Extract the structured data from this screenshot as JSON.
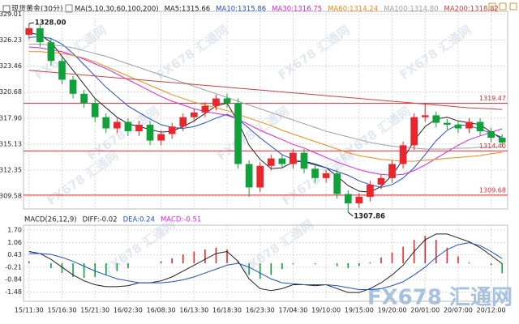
{
  "chart_data": [
    {
      "type": "candlestick",
      "title": "现货黄金(30分)",
      "indicator": "MA(5,10,30,60,100,200)",
      "open": [
        1326.8,
        1327.5,
        1326.0,
        1324.0,
        1322.0,
        1320.5,
        1319.5,
        1318.0,
        1316.8,
        1317.5,
        1316.5,
        1317.2,
        1315.5,
        1316.2,
        1317.0,
        1318.0,
        1318.5,
        1319.2,
        1320.0,
        1319.5,
        1313.0,
        1310.5,
        1312.8,
        1313.6,
        1313.0,
        1314.2,
        1312.5,
        1311.5,
        1312.0,
        1309.8,
        1308.8,
        1309.5,
        1310.8,
        1311.5,
        1313.0,
        1315.0,
        1318.0,
        1318.2,
        1317.4,
        1317.2,
        1316.8,
        1317.5,
        1316.5,
        1315.8
      ],
      "high": [
        1328.0,
        1327.9,
        1326.4,
        1324.4,
        1322.4,
        1320.9,
        1319.9,
        1318.4,
        1317.9,
        1317.9,
        1317.6,
        1317.6,
        1316.6,
        1317.4,
        1318.4,
        1318.9,
        1319.6,
        1320.4,
        1320.5,
        1320.0,
        1313.4,
        1313.2,
        1314.0,
        1314.0,
        1314.6,
        1314.6,
        1312.9,
        1312.4,
        1312.4,
        1310.2,
        1309.9,
        1311.2,
        1311.9,
        1313.4,
        1315.4,
        1318.4,
        1319.4,
        1318.6,
        1317.8,
        1317.6,
        1317.9,
        1317.9,
        1316.9,
        1316.2
      ],
      "low": [
        1326.3,
        1325.5,
        1323.5,
        1321.5,
        1320.0,
        1319.0,
        1317.5,
        1316.3,
        1316.3,
        1316.0,
        1316.0,
        1315.0,
        1315.0,
        1315.7,
        1316.5,
        1317.5,
        1318.0,
        1318.7,
        1319.0,
        1312.5,
        1309.5,
        1310.0,
        1312.3,
        1312.5,
        1312.5,
        1312.0,
        1311.0,
        1311.0,
        1309.3,
        1307.86,
        1308.3,
        1309.0,
        1310.3,
        1311.0,
        1312.5,
        1314.5,
        1317.5,
        1316.9,
        1316.7,
        1316.3,
        1316.3,
        1316.0,
        1315.3,
        1314.8
      ],
      "close": [
        1327.5,
        1326.0,
        1324.0,
        1322.0,
        1320.5,
        1319.5,
        1318.0,
        1316.8,
        1317.5,
        1316.5,
        1317.2,
        1315.5,
        1316.2,
        1317.0,
        1318.0,
        1318.5,
        1319.2,
        1320.0,
        1319.5,
        1313.0,
        1310.5,
        1312.8,
        1313.6,
        1313.0,
        1314.2,
        1312.5,
        1311.5,
        1312.0,
        1309.8,
        1308.8,
        1309.5,
        1310.8,
        1311.5,
        1313.0,
        1315.0,
        1318.0,
        1318.2,
        1317.4,
        1317.2,
        1316.8,
        1317.5,
        1316.5,
        1315.8,
        1315.3
      ],
      "up_color": "#e8262b",
      "down_color": "#11a13b",
      "series": [
        {
          "name": "MA5:1315.66",
          "color": "#222222",
          "values": [
            1327,
            1326.8,
            1326,
            1324.5,
            1323,
            1321.5,
            1320,
            1319,
            1318,
            1317.3,
            1317,
            1316.7,
            1316.4,
            1316.5,
            1317,
            1317.6,
            1318.4,
            1319.2,
            1319.5,
            1317.5,
            1315,
            1313.5,
            1312.5,
            1312.6,
            1313.2,
            1313.3,
            1313,
            1312.6,
            1311.7,
            1310.7,
            1310.1,
            1310,
            1310.6,
            1311.8,
            1313.5,
            1315.5,
            1317,
            1317.8,
            1318,
            1317.6,
            1317.4,
            1317.2,
            1316.4,
            1315.66
          ]
        },
        {
          "name": "MA10:1315.86",
          "color": "#1f4fd1",
          "values": [
            1326.5,
            1326.6,
            1326.4,
            1325.8,
            1324.8,
            1323.6,
            1322.4,
            1321.2,
            1320.2,
            1319.2,
            1318.5,
            1317.8,
            1317.2,
            1316.9,
            1316.8,
            1317,
            1317.4,
            1317.9,
            1318.3,
            1317.8,
            1316.8,
            1315.8,
            1314.9,
            1314,
            1313.5,
            1313.2,
            1312.9,
            1312.6,
            1312.2,
            1311.8,
            1311.2,
            1310.8,
            1310.5,
            1310.8,
            1311.5,
            1312.6,
            1314,
            1315.5,
            1316.6,
            1317.2,
            1317.1,
            1316.7,
            1316.3,
            1315.86
          ]
        },
        {
          "name": "MA30:1316.75",
          "color": "#e020e0",
          "values": [
            1325.5,
            1325.4,
            1325.2,
            1325,
            1324.6,
            1324.2,
            1323.7,
            1323.2,
            1322.6,
            1322,
            1321.4,
            1320.8,
            1320.2,
            1319.7,
            1319.3,
            1318.9,
            1318.6,
            1318.4,
            1318.2,
            1317.8,
            1317.2,
            1316.6,
            1316.1,
            1315.6,
            1315.1,
            1314.7,
            1314.2,
            1313.7,
            1313.2,
            1312.8,
            1312.4,
            1312.1,
            1311.9,
            1311.8,
            1311.9,
            1312.3,
            1312.9,
            1313.6,
            1314.3,
            1315,
            1315.6,
            1316,
            1316.4,
            1316.75
          ]
        },
        {
          "name": "MA60:1314.24",
          "color": "#f08a10",
          "values": [
            1325,
            1325,
            1324.9,
            1324.8,
            1324.6,
            1324.3,
            1323.9,
            1323.4,
            1322.9,
            1322.4,
            1321.9,
            1321.4,
            1320.9,
            1320.4,
            1320,
            1319.6,
            1319.3,
            1319,
            1318.7,
            1318.3,
            1317.9,
            1317.5,
            1317.1,
            1316.6,
            1316.2,
            1315.8,
            1315.4,
            1315,
            1314.6,
            1314.2,
            1313.9,
            1313.7,
            1313.5,
            1313.4,
            1313.3,
            1313.3,
            1313.4,
            1313.5,
            1313.6,
            1313.7,
            1313.8,
            1313.9,
            1314.1,
            1314.24
          ]
        },
        {
          "name": "MA100:1314.80",
          "color": "#a0a0a0",
          "values": [
            1325.8,
            1325.8,
            1325.7,
            1325.6,
            1325.4,
            1325.1,
            1324.8,
            1324.5,
            1324.1,
            1323.7,
            1323.3,
            1322.9,
            1322.5,
            1322.1,
            1321.7,
            1321.3,
            1320.9,
            1320.5,
            1320.1,
            1319.7,
            1319.3,
            1318.9,
            1318.5,
            1318.1,
            1317.7,
            1317.3,
            1316.9,
            1316.5,
            1316.2,
            1315.9,
            1315.6,
            1315.3,
            1315.1,
            1314.9,
            1314.8,
            1314.7,
            1314.6,
            1314.6,
            1314.6,
            1314.7,
            1314.7,
            1314.8,
            1314.8,
            1314.8
          ]
        },
        {
          "name": "MA200:1318.82",
          "color": "#d04040",
          "values": [
            1323,
            1322.9,
            1322.8,
            1322.7,
            1322.6,
            1322.5,
            1322.4,
            1322.3,
            1322.2,
            1322.1,
            1322,
            1321.9,
            1321.8,
            1321.7,
            1321.6,
            1321.5,
            1321.4,
            1321.3,
            1321.2,
            1321.1,
            1321,
            1320.9,
            1320.8,
            1320.7,
            1320.6,
            1320.5,
            1320.4,
            1320.3,
            1320.2,
            1320.1,
            1320,
            1319.9,
            1319.8,
            1319.7,
            1319.6,
            1319.5,
            1319.4,
            1319.3,
            1319.2,
            1319.1,
            1319,
            1318.95,
            1318.9,
            1318.82
          ]
        }
      ],
      "ylim": [
        1308.2,
        1329.3
      ],
      "yticks": [
        1329.01,
        1326.23,
        1323.46,
        1320.68,
        {
          "value": 1317.9,
          "label": "1317.90"
        },
        1315.13,
        1312.35,
        1309.58
      ],
      "levels": [
        1319.47,
        {
          "value": 1314.4,
          "label": "1314.40"
        },
        1309.68
      ],
      "level_color": "#e8262b",
      "annotations": [
        {
          "value": 1328,
          "label": "1328.00"
        },
        1307.86
      ],
      "grid": true,
      "watermark": "FX678 汇通网"
    },
    {
      "type": "macd",
      "indicator": "MACD(26,12,9)",
      "categories": [
        "15/11:30",
        null,
        null,
        "15/16:30",
        null,
        null,
        "15/21:30",
        null,
        null,
        "16/02:30",
        null,
        null,
        "16/08:30",
        null,
        null,
        "16/13:30",
        null,
        null,
        "16/18:30",
        null,
        null,
        "16/23:30",
        null,
        null,
        "17/04:30",
        null,
        null,
        "19/10:00",
        null,
        null,
        "19/15:00",
        null,
        null,
        "19/20:00",
        null,
        null,
        "20/01:00",
        null,
        null,
        "20/07:00",
        null,
        null,
        "20/12:00",
        null
      ],
      "histogram": {
        "name": "MACD:-0.51",
        "up_color": "#e8262b",
        "down_color": "#11a13b",
        "values": [
          0.1,
          0,
          -0.25,
          -0.5,
          -0.7,
          -0.75,
          -0.7,
          -0.6,
          -0.4,
          -0.25,
          0,
          0,
          0.1,
          0.25,
          0.45,
          0.6,
          0.7,
          0.8,
          0.7,
          0.1,
          -0.6,
          -0.8,
          -0.6,
          -0.3,
          -0.05,
          0,
          -0.05,
          0,
          -0.15,
          -0.25,
          -0.15,
          0.05,
          0.3,
          0.55,
          0.85,
          1.2,
          1.4,
          1.2,
          0.8,
          0.35,
          0.05,
          0,
          -0.1,
          -0.51
        ]
      },
      "series": [
        {
          "name": "DIFF:-0.02",
          "color": "#222222",
          "values": [
            0.6,
            0.5,
            0.2,
            -0.2,
            -0.6,
            -0.9,
            -1.1,
            -1.2,
            -1.2,
            -1.15,
            -1.0,
            -1.0,
            -0.9,
            -0.7,
            -0.4,
            -0.1,
            0.2,
            0.5,
            0.6,
            0.1,
            -0.8,
            -1.3,
            -1.4,
            -1.3,
            -1.1,
            -1.1,
            -1.15,
            -1.1,
            -1.3,
            -1.5,
            -1.5,
            -1.3,
            -1.0,
            -0.6,
            -0.1,
            0.6,
            1.2,
            1.5,
            1.5,
            1.3,
            1.1,
            0.8,
            0.4,
            -0.02
          ]
        },
        {
          "name": "DEA:0.24",
          "color": "#1f4fd1",
          "values": [
            0.5,
            0.5,
            0.45,
            0.3,
            0.1,
            -0.15,
            -0.4,
            -0.6,
            -0.8,
            -0.9,
            -1.0,
            -1.0,
            -1.0,
            -0.95,
            -0.85,
            -0.7,
            -0.5,
            -0.3,
            -0.1,
            0,
            -0.2,
            -0.5,
            -0.8,
            -1.0,
            -1.05,
            -1.1,
            -1.1,
            -1.1,
            -1.15,
            -1.25,
            -1.35,
            -1.35,
            -1.3,
            -1.15,
            -0.95,
            -0.6,
            -0.2,
            0.3,
            0.7,
            0.95,
            1.05,
            0.9,
            0.6,
            0.24
          ]
        }
      ],
      "ylim": [
        -1.95,
        1.95
      ],
      "yticks": [
        {
          "value": 1.7,
          "label": "1.70"
        },
        1.06,
        0.43,
        -0.21,
        -0.84,
        -1.48
      ],
      "grid": true
    }
  ]
}
